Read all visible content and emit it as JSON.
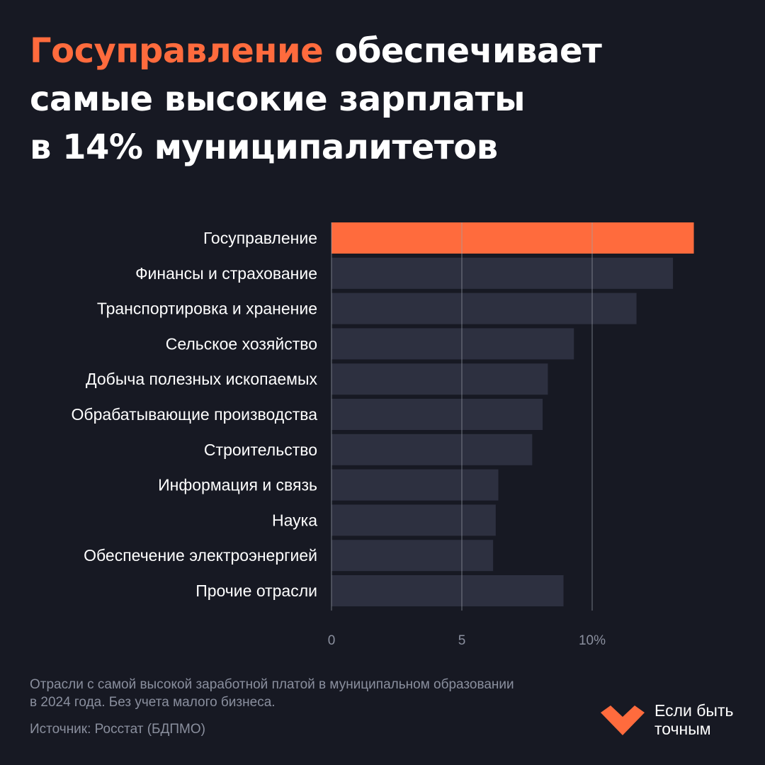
{
  "title": {
    "accent": "Госуправление",
    "line1_rest": " обеспечивает",
    "line2": "самые высокие зарплаты",
    "line3": "в 14% муниципалитетов"
  },
  "chart_data": {
    "type": "bar",
    "orientation": "horizontal",
    "categories": [
      "Госуправление",
      "Финансы и страхование",
      "Транспортировка и хранение",
      "Сельское хозяйство",
      "Добыча полезных ископаемых",
      "Обрабатывающие производства",
      "Строительство",
      "Информация и связь",
      "Наука",
      "Обеспечение электроэнергией",
      "Прочие отрасли"
    ],
    "values": [
      13.9,
      13.1,
      11.7,
      9.3,
      8.3,
      8.1,
      7.7,
      6.4,
      6.3,
      6.2,
      8.9
    ],
    "highlight_index": 0,
    "xlim": [
      0,
      14
    ],
    "xticks": [
      {
        "value": 0,
        "label": "0"
      },
      {
        "value": 5,
        "label": "5"
      },
      {
        "value": 10,
        "label": "10%"
      }
    ],
    "grid": true,
    "colors": {
      "highlight": "#ff6b3d",
      "bar": "#2d3040",
      "grid": "#9a9ea8",
      "tick": "#8a8f9e"
    }
  },
  "footnote": {
    "line1": "Отрасли с самой высокой заработной платой в муниципальном образовании",
    "line2": "в 2024 года. Без учета малого бизнеса."
  },
  "source": "Источник: Росстат (БДПМО)",
  "brand": {
    "line1": "Если быть",
    "line2": "точным",
    "color": "#ff6b3d"
  }
}
